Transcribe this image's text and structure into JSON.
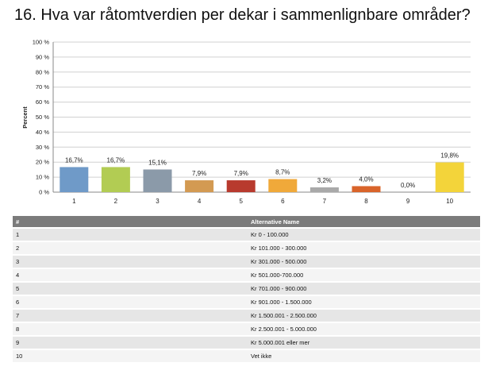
{
  "title": "16. Hva var råtomtverdien per dekar i sammenlignbare områder?",
  "chart_data": {
    "type": "bar",
    "categories": [
      "1",
      "2",
      "3",
      "4",
      "5",
      "6",
      "7",
      "8",
      "9",
      "10"
    ],
    "values": [
      16.7,
      16.7,
      15.1,
      7.9,
      7.9,
      8.7,
      3.2,
      4.0,
      0.0,
      19.8
    ],
    "value_labels": [
      "16,7%",
      "16,7%",
      "15,1%",
      "7,9%",
      "7,9%",
      "8,7%",
      "3,2%",
      "4,0%",
      "0,0%",
      "19,8%"
    ],
    "colors": [
      "#6f9ac8",
      "#b2cc53",
      "#8b9aa9",
      "#d39a52",
      "#b83a2e",
      "#f0a93a",
      "#a9a9a9",
      "#d9642a",
      "#cccccc",
      "#f3d43a"
    ],
    "ylabel": "Percent",
    "ylim": [
      0,
      100
    ],
    "yticks": [
      0,
      10,
      20,
      30,
      40,
      50,
      60,
      70,
      80,
      90,
      100
    ],
    "ytick_labels": [
      "0 %",
      "10 %",
      "20 %",
      "30 %",
      "40 %",
      "50 %",
      "60 %",
      "70 %",
      "80 %",
      "90 %",
      "100 %"
    ],
    "grid": true
  },
  "table": {
    "headers": [
      "#",
      "Alternative Name"
    ],
    "rows": [
      [
        "1",
        "Kr 0 - 100.000"
      ],
      [
        "2",
        "Kr 101.000 - 300.000"
      ],
      [
        "3",
        "Kr 301.000 - 500.000"
      ],
      [
        "4",
        "Kr 501.000-700.000"
      ],
      [
        "5",
        "Kr 701.000 - 900.000"
      ],
      [
        "6",
        "Kr 901.000 - 1.500.000"
      ],
      [
        "7",
        "Kr 1.500.001 - 2.500.000"
      ],
      [
        "8",
        "Kr 2.500.001 - 5.000.000"
      ],
      [
        "9",
        "Kr 5.000.001 eller mer"
      ],
      [
        "10",
        "Vet ikke"
      ]
    ]
  }
}
